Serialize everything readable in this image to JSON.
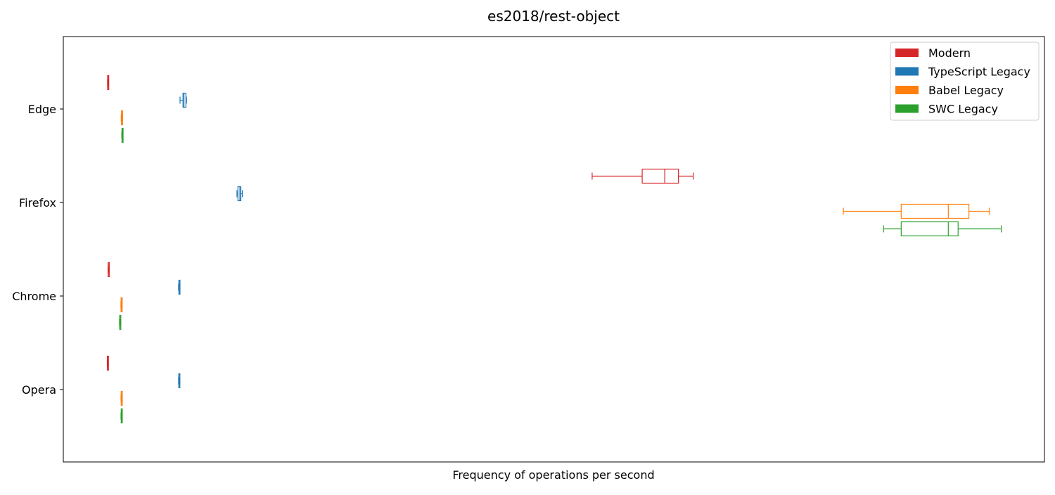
{
  "chart_data": {
    "type": "boxplot",
    "orientation": "horizontal",
    "title": "es2018/rest-object",
    "xlabel": "Frequency of operations per second",
    "ylabel": "",
    "x_ticks_shown": false,
    "xlim": [
      0,
      1000
    ],
    "categories": [
      "Edge",
      "Firefox",
      "Chrome",
      "Opera"
    ],
    "grid": false,
    "legend_position": "top-right",
    "series": [
      {
        "name": "Modern",
        "color": "#d62728",
        "boxes": [
          {
            "category": "Edge",
            "whislo": 45.1,
            "q1": 45.2,
            "med": 45.4,
            "q3": 45.6,
            "whishi": 45.7
          },
          {
            "category": "Firefox",
            "whislo": 539.0,
            "q1": 590.0,
            "med": 613.0,
            "q3": 627.0,
            "whishi": 642.0
          },
          {
            "category": "Chrome",
            "whislo": 45.6,
            "q1": 45.7,
            "med": 45.9,
            "q3": 46.0,
            "whishi": 46.2
          },
          {
            "category": "Opera",
            "whislo": 44.8,
            "q1": 44.9,
            "med": 45.1,
            "q3": 45.2,
            "whishi": 45.4
          }
        ]
      },
      {
        "name": "TypeScript Legacy",
        "color": "#1f77b4",
        "boxes": [
          {
            "category": "Edge",
            "whislo": 119.0,
            "q1": 122.0,
            "med": 123.0,
            "q3": 125.0,
            "whishi": 125.5
          },
          {
            "category": "Firefox",
            "whislo": 177.0,
            "q1": 178.0,
            "med": 180.0,
            "q3": 181.0,
            "whishi": 182.5
          },
          {
            "category": "Chrome",
            "whislo": 117.5,
            "q1": 117.8,
            "med": 118.1,
            "q3": 118.5,
            "whishi": 118.9
          },
          {
            "category": "Opera",
            "whislo": 117.5,
            "q1": 117.7,
            "med": 118.0,
            "q3": 118.3,
            "whishi": 118.6
          }
        ]
      },
      {
        "name": "Babel Legacy",
        "color": "#ff7f0e",
        "boxes": [
          {
            "category": "Edge",
            "whislo": 59.0,
            "q1": 59.3,
            "med": 59.6,
            "q3": 59.9,
            "whishi": 60.2
          },
          {
            "category": "Firefox",
            "whislo": 795.0,
            "q1": 854.0,
            "med": 902.0,
            "q3": 923.0,
            "whishi": 944.0
          },
          {
            "category": "Chrome",
            "whislo": 58.7,
            "q1": 58.9,
            "med": 59.2,
            "q3": 59.4,
            "whishi": 59.6
          },
          {
            "category": "Opera",
            "whislo": 58.8,
            "q1": 59.0,
            "med": 59.3,
            "q3": 59.5,
            "whishi": 59.7
          }
        ]
      },
      {
        "name": "SWC Legacy",
        "color": "#2ca02c",
        "boxes": [
          {
            "category": "Edge",
            "whislo": 59.6,
            "q1": 59.8,
            "med": 60.1,
            "q3": 60.3,
            "whishi": 60.5
          },
          {
            "category": "Firefox",
            "whislo": 836.0,
            "q1": 854.0,
            "med": 902.0,
            "q3": 912.0,
            "whishi": 956.0
          },
          {
            "category": "Chrome",
            "whislo": 57.3,
            "q1": 57.5,
            "med": 57.8,
            "q3": 58.0,
            "whishi": 58.3
          },
          {
            "category": "Opera",
            "whislo": 58.8,
            "q1": 59.0,
            "med": 59.3,
            "q3": 59.5,
            "whishi": 59.7
          }
        ]
      }
    ]
  }
}
